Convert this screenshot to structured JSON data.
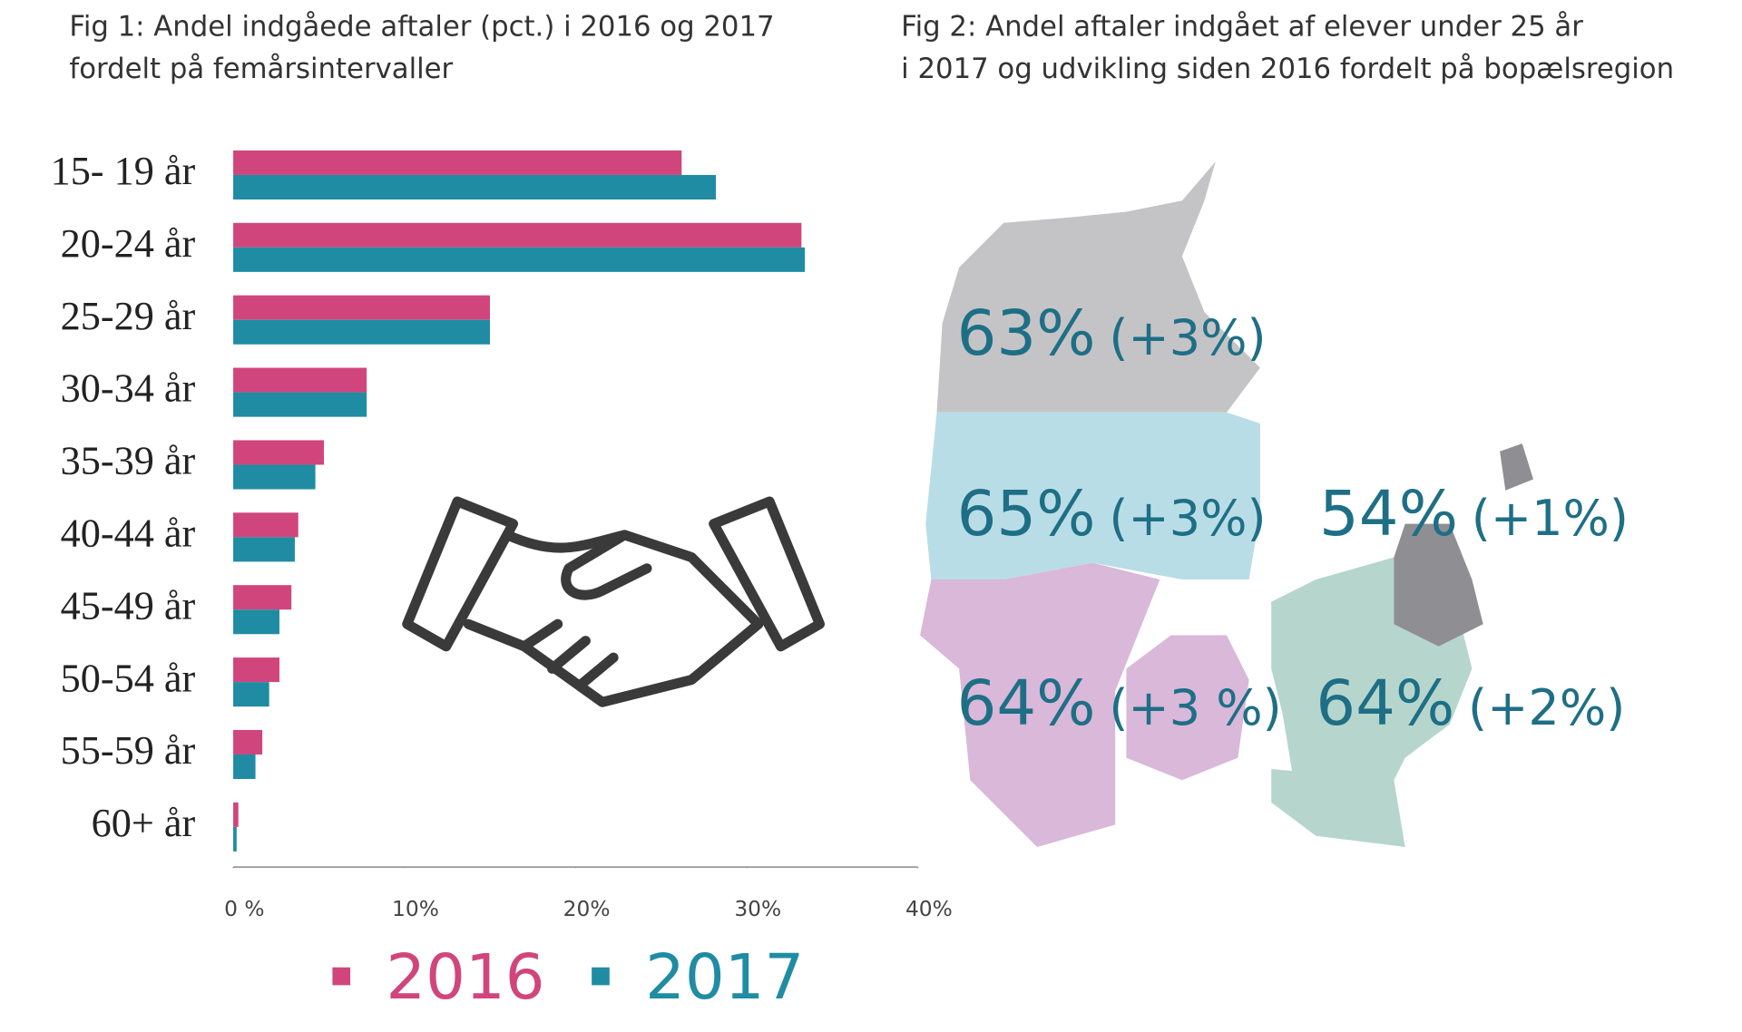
{
  "chart_data": [
    {
      "type": "bar",
      "title": [
        "Fig 1: Andel indgåede aftaler (pct.) i 2016 og 2017",
        "fordelt på femårsintervaller"
      ],
      "categories": [
        "15- 19 år",
        "20-24 år",
        "25-29 år",
        "30-34 år",
        "35-39 år",
        "40-44 år",
        "45-49 år",
        "50-54 år",
        "55-59 år",
        "60+ år"
      ],
      "series": [
        {
          "name": "2016",
          "color": "#d0467c",
          "values": [
            26.2,
            33.2,
            15.0,
            7.8,
            5.3,
            3.8,
            3.4,
            2.7,
            1.7,
            0.3
          ]
        },
        {
          "name": "2017",
          "color": "#1f8ca3",
          "values": [
            28.2,
            33.4,
            15.0,
            7.8,
            4.8,
            3.6,
            2.7,
            2.1,
            1.3,
            0.2
          ]
        }
      ],
      "xlim": [
        0,
        40
      ],
      "xticks": [
        {
          "value": 0,
          "label": "0 %"
        },
        {
          "value": 10,
          "label": "10%"
        },
        {
          "value": 20,
          "label": "20%"
        },
        {
          "value": 30,
          "label": "30%"
        },
        {
          "value": 40,
          "label": "40%"
        }
      ]
    },
    {
      "type": "map",
      "title": [
        "Fig 2: Andel aftaler indgået af elever under 25 år",
        "i 2017 og udvikling siden 2016 fordelt på bopælsregion"
      ],
      "values": [
        63,
        65,
        54,
        64,
        64
      ],
      "value_labels": [
        "63%",
        "65%",
        "54%",
        "64%",
        "64%"
      ],
      "changes": [
        3,
        3,
        1,
        3,
        2
      ],
      "change_labels": [
        "(+3%)",
        "(+3%)",
        "(+1%)",
        "(+3 %)",
        "(+2%)"
      ]
    }
  ]
}
